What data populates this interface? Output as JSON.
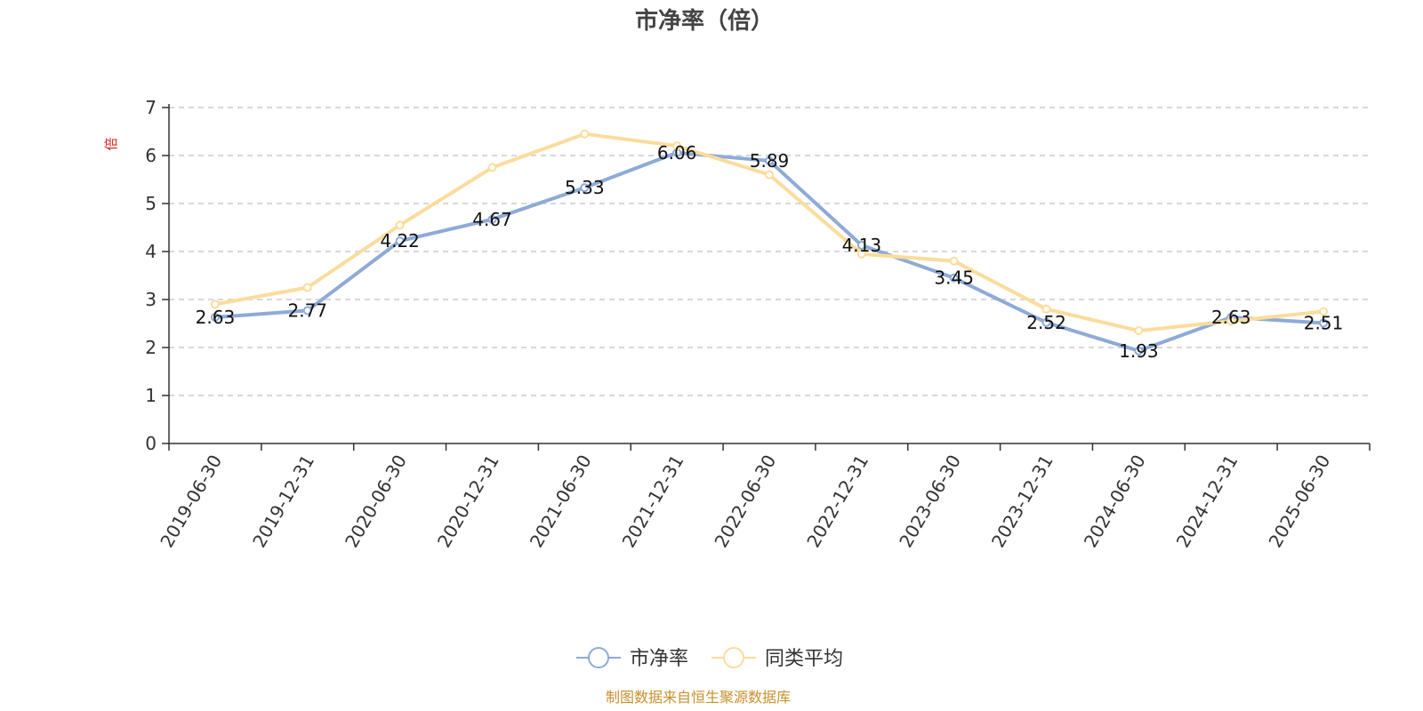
{
  "chart_data": {
    "type": "line",
    "title": "市净率（倍）",
    "ylabel": "倍",
    "categories": [
      "2019-06-30",
      "2019-12-31",
      "2020-06-30",
      "2020-12-31",
      "2021-06-30",
      "2021-12-31",
      "2022-06-30",
      "2022-12-31",
      "2023-06-30",
      "2023-12-31",
      "2024-06-30",
      "2024-12-31",
      "2025-06-30"
    ],
    "ylim": [
      0,
      7
    ],
    "yticks": [
      0,
      1,
      2,
      3,
      4,
      5,
      6,
      7
    ],
    "grid": true,
    "legend_position": "bottom",
    "series": [
      {
        "name": "市净率",
        "color": "#8eaad8",
        "values": [
          2.63,
          2.77,
          4.22,
          4.67,
          5.33,
          6.06,
          5.89,
          4.13,
          3.45,
          2.52,
          1.93,
          2.63,
          2.51
        ],
        "data_labels": true
      },
      {
        "name": "同类平均",
        "color": "#fbdc9c",
        "values": [
          2.9,
          3.25,
          4.55,
          5.75,
          6.45,
          6.2,
          5.6,
          3.95,
          3.8,
          2.8,
          2.35,
          2.55,
          2.75
        ],
        "data_labels": false
      }
    ]
  },
  "ylabel_color": "#e02020",
  "source_text": "制图数据来自恒生聚源数据库",
  "source_color": "#c8902a"
}
